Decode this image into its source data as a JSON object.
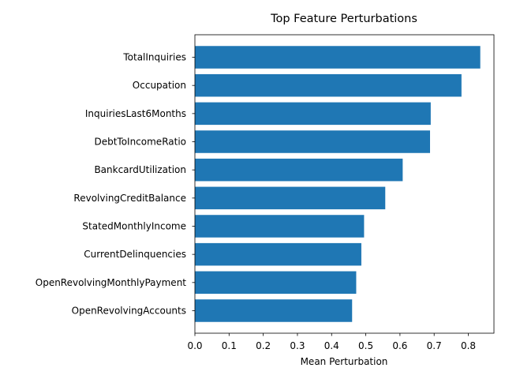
{
  "chart_data": {
    "type": "bar",
    "orientation": "horizontal",
    "title": "Top Feature Perturbations",
    "xlabel": "Mean Perturbation",
    "ylabel": "",
    "xlim": [
      0,
      0.875
    ],
    "xticks": [
      0.0,
      0.1,
      0.2,
      0.3,
      0.4,
      0.5,
      0.6,
      0.7,
      0.8
    ],
    "xtick_labels": [
      "0.0",
      "0.1",
      "0.2",
      "0.3",
      "0.4",
      "0.5",
      "0.6",
      "0.7",
      "0.8"
    ],
    "grid": false,
    "bar_color": "#1f77b4",
    "categories": [
      "TotalInquiries",
      "Occupation",
      "InquiriesLast6Months",
      "DebtToIncomeRatio",
      "BankcardUtilization",
      "RevolvingCreditBalance",
      "StatedMonthlyIncome",
      "CurrentDelinquencies",
      "OpenRevolvingMonthlyPayment",
      "OpenRevolvingAccounts"
    ],
    "values": [
      0.835,
      0.78,
      0.69,
      0.688,
      0.608,
      0.557,
      0.495,
      0.487,
      0.472,
      0.46
    ]
  }
}
